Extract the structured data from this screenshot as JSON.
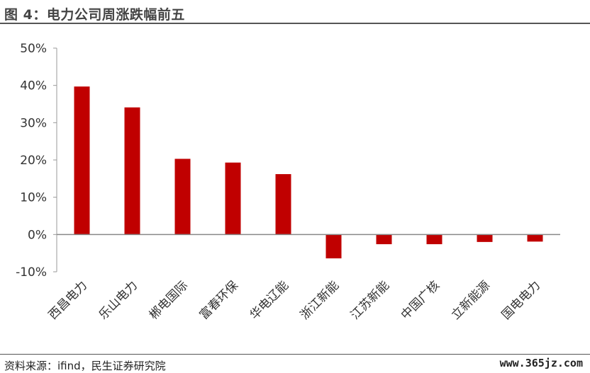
{
  "header": {
    "title": "图 4：电力公司周涨跌幅前五"
  },
  "footer": {
    "source": "资料来源：ifind，民生证券研究院",
    "watermark": "www.365jz.com"
  },
  "colors": {
    "bar": "#c00000",
    "axis": "#999999",
    "zero_line": "#888888"
  },
  "chart_data": {
    "type": "bar",
    "title": "",
    "xlabel": "",
    "ylabel": "",
    "categories": [
      "西昌电力",
      "乐山电力",
      "郴电国际",
      "富春环保",
      "华电辽能",
      "浙江新能",
      "江苏新能",
      "中国广核",
      "立新能源",
      "国电电力"
    ],
    "values": [
      39.7,
      34.1,
      20.3,
      19.3,
      16.2,
      -6.4,
      -2.6,
      -2.6,
      -2.0,
      -1.9
    ],
    "ylim": [
      -10,
      50
    ],
    "yticks": [
      -10,
      0,
      10,
      20,
      30,
      40,
      50
    ],
    "ytick_labels": [
      "-10%",
      "0%",
      "10%",
      "20%",
      "30%",
      "40%",
      "50%"
    ],
    "grid": false,
    "legend": "none"
  }
}
